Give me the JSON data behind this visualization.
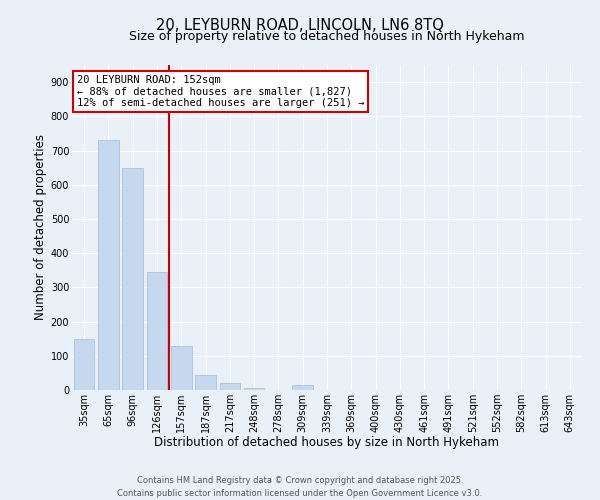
{
  "title_line1": "20, LEYBURN ROAD, LINCOLN, LN6 8TQ",
  "title_line2": "Size of property relative to detached houses in North Hykeham",
  "xlabel": "Distribution of detached houses by size in North Hykeham",
  "ylabel": "Number of detached properties",
  "categories": [
    "35sqm",
    "65sqm",
    "96sqm",
    "126sqm",
    "157sqm",
    "187sqm",
    "217sqm",
    "248sqm",
    "278sqm",
    "309sqm",
    "339sqm",
    "369sqm",
    "400sqm",
    "430sqm",
    "461sqm",
    "491sqm",
    "521sqm",
    "552sqm",
    "582sqm",
    "613sqm",
    "643sqm"
  ],
  "values": [
    150,
    730,
    650,
    345,
    130,
    45,
    20,
    5,
    0,
    15,
    0,
    0,
    0,
    0,
    0,
    0,
    0,
    0,
    0,
    0,
    0
  ],
  "bar_color": "#c5d8ed",
  "bar_edgecolor": "#a0bcd8",
  "redline_index": 4,
  "annotation_text1": "20 LEYBURN ROAD: 152sqm",
  "annotation_text2": "← 88% of detached houses are smaller (1,827)",
  "annotation_text3": "12% of semi-detached houses are larger (251) →",
  "annotation_box_facecolor": "#ffffff",
  "annotation_box_edgecolor": "#cc0000",
  "redline_color": "#cc0000",
  "ylim": [
    0,
    950
  ],
  "yticks": [
    0,
    100,
    200,
    300,
    400,
    500,
    600,
    700,
    800,
    900
  ],
  "background_color": "#eaf0f8",
  "footer_line1": "Contains HM Land Registry data © Crown copyright and database right 2025.",
  "footer_line2": "Contains public sector information licensed under the Open Government Licence v3.0.",
  "title_fontsize": 10.5,
  "subtitle_fontsize": 9,
  "tick_fontsize": 7,
  "xlabel_fontsize": 8.5,
  "ylabel_fontsize": 8.5,
  "footer_fontsize": 6,
  "annotation_fontsize": 7.5
}
